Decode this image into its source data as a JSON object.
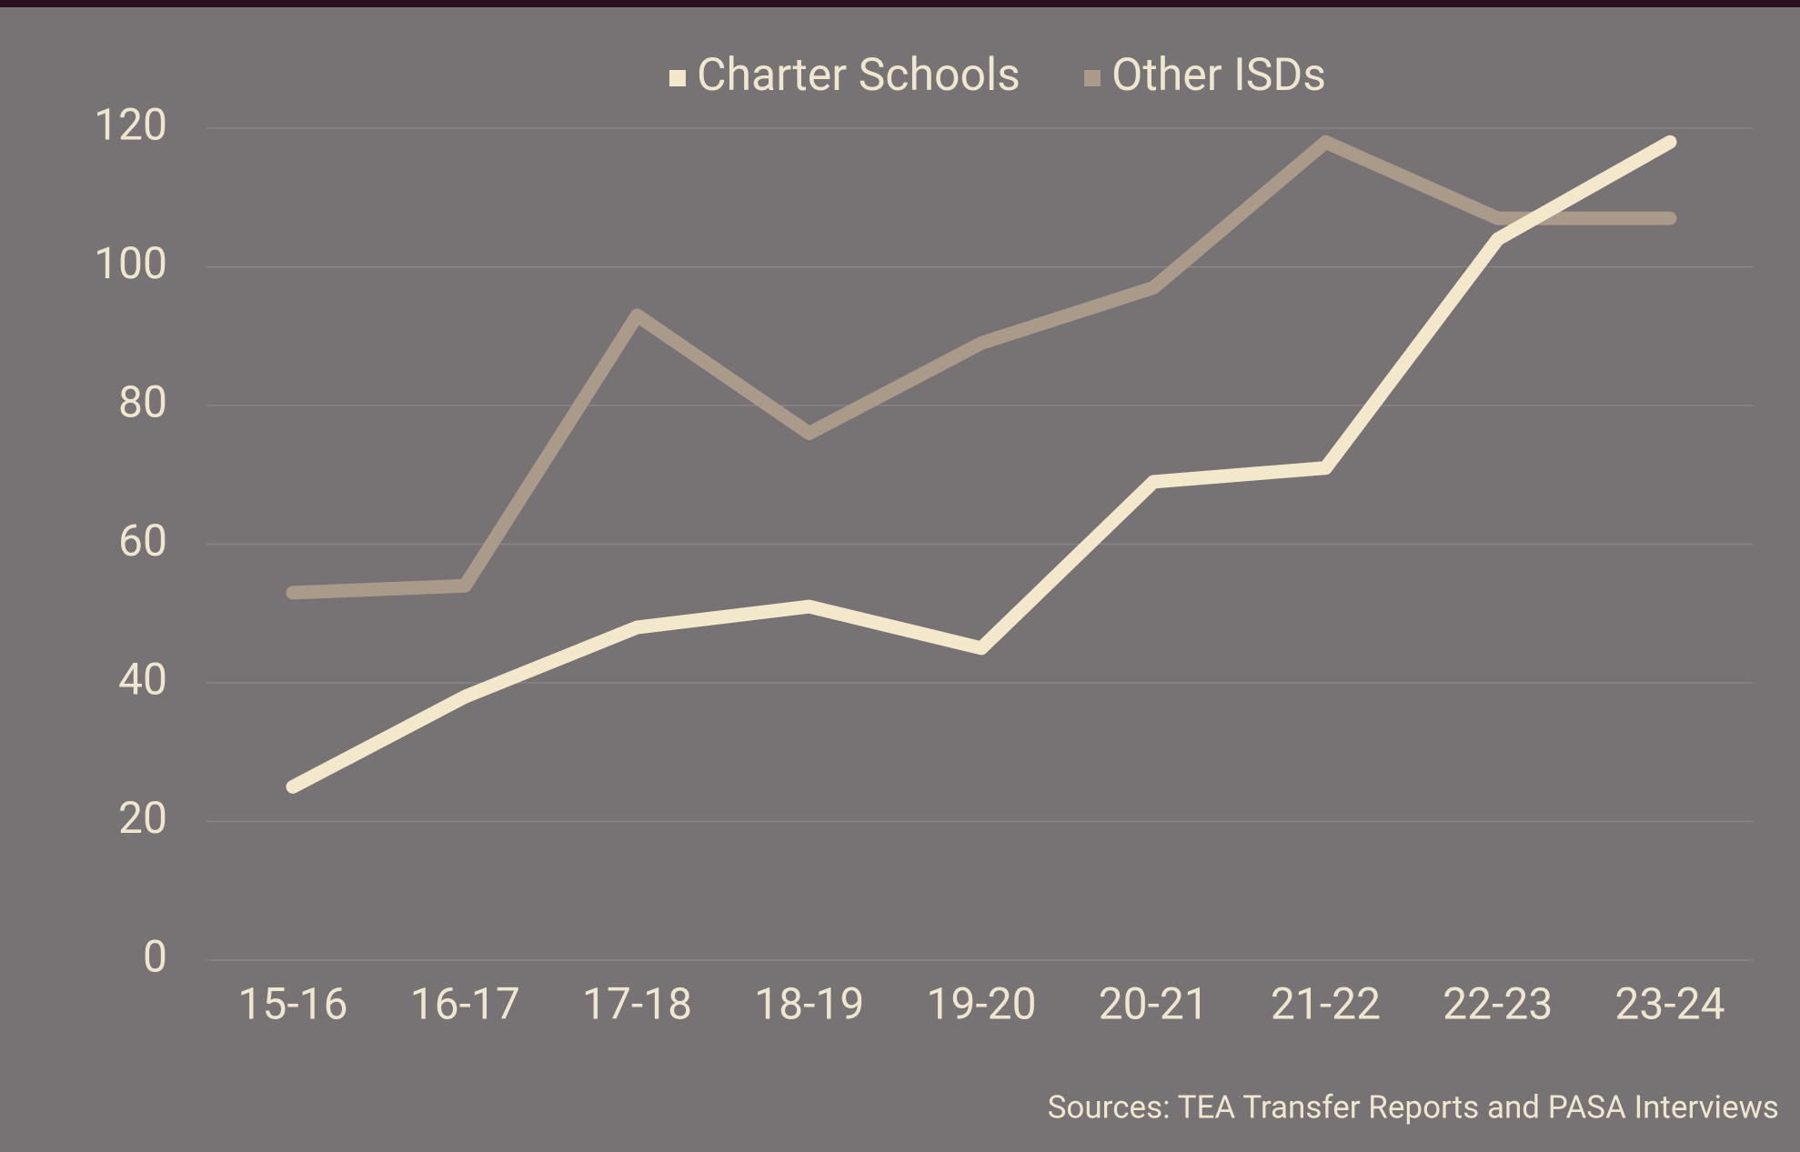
{
  "chart_data": {
    "type": "line",
    "categories": [
      "15-16",
      "16-17",
      "17-18",
      "18-19",
      "19-20",
      "20-21",
      "21-22",
      "22-23",
      "23-24"
    ],
    "series": [
      {
        "name": "Charter Schools",
        "color": "#f3e8cc",
        "values": [
          25,
          38,
          48,
          51,
          45,
          69,
          71,
          104,
          118
        ]
      },
      {
        "name": "Other ISDs",
        "color": "#a99a8a",
        "values": [
          53,
          54,
          93,
          76,
          89,
          97,
          118,
          107,
          107
        ]
      }
    ],
    "ylim": [
      0,
      120
    ],
    "yticks": [
      0,
      20,
      40,
      60,
      80,
      100,
      120
    ],
    "grid": true,
    "legend": "top",
    "source": "Sources: TEA Transfer Reports and PASA Interviews"
  }
}
